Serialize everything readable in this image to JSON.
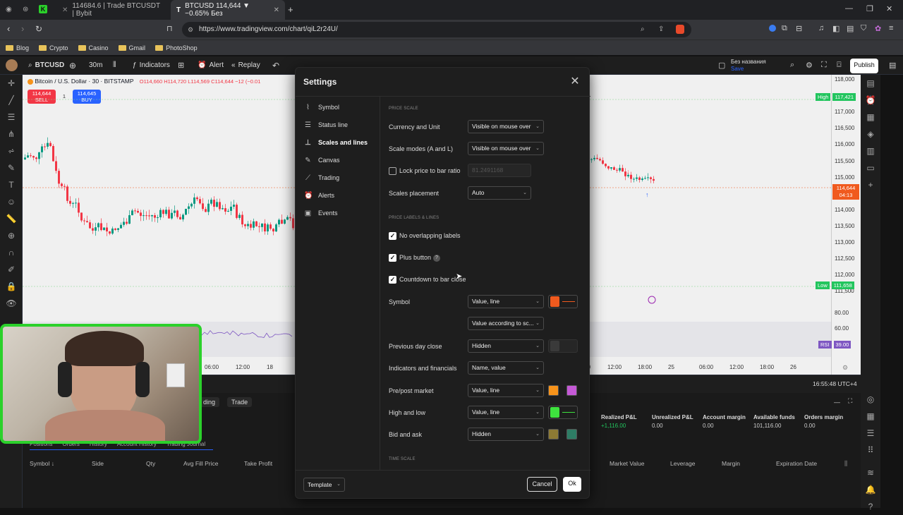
{
  "browser": {
    "tabs": [
      {
        "label": "114684.6 | Trade BTCUSDT | Bybit",
        "active": false
      },
      {
        "label": "BTCUSD 114,644 ▼ −0.65% Без",
        "active": true
      }
    ],
    "url": "https://www.tradingview.com/chart/qiL2r24U/",
    "bookmarks": [
      "Blog",
      "Crypto",
      "Casino",
      "Gmail",
      "PhotoShop"
    ]
  },
  "toolbar": {
    "symbol": "BTCUSD",
    "interval": "30m",
    "indicators": "Indicators",
    "alert": "Alert",
    "replay": "Replay",
    "layout_name": "Без названия",
    "layout_sub": "Save",
    "publish": "Publish"
  },
  "chart": {
    "title": "Bitcoin / U.S. Dollar · 30 · BITSTAMP",
    "ohlc": "O114,660 H114,720 L114,569 C114,644 −12 (−0.01",
    "sell_price": "114,644",
    "sell_label": "SELL",
    "buy_price": "114,645",
    "buy_label": "BUY",
    "qty": "1",
    "price_ticks": [
      "118,000",
      "117,500",
      "117,000",
      "116,500",
      "116,000",
      "115,500",
      "115,000",
      "114,500",
      "114,000",
      "113,500",
      "113,000",
      "112,500",
      "112,000",
      "111,500"
    ],
    "high_label": "High",
    "high_value": "117,421",
    "low_label": "Low",
    "low_value": "111,658",
    "current_price": "114,644",
    "countdown": "04:13",
    "rsi_ticks": [
      "80.00",
      "60.00"
    ],
    "rsi_label": "RSI",
    "rsi_value": "39.00",
    "time_ticks": [
      "06:00",
      "12:00",
      "18",
      "06:00",
      "12:00",
      "18:00",
      "25",
      "06:00",
      "12:00",
      "18:00",
      "26"
    ],
    "clock": "16:55:48 UTC+4",
    "accent_up": "#089981",
    "accent_down": "#f23645"
  },
  "bottom_panel": {
    "tabs": [
      "Positions",
      "Orders",
      "History",
      "Account History",
      "Trading Journal"
    ],
    "trade_tab": "Trade",
    "trading_tab": "ding",
    "stats": [
      {
        "label": "Realized P&L",
        "value": "+1,116.00"
      },
      {
        "label": "Unrealized P&L",
        "value": "0.00"
      },
      {
        "label": "Account margin",
        "value": "0.00"
      },
      {
        "label": "Available funds",
        "value": "101,116.00"
      },
      {
        "label": "Orders margin",
        "value": "0.00"
      }
    ],
    "columns_left": [
      "Symbol ↓",
      "Side",
      "Qty",
      "Avg Fill Price",
      "Take Profit"
    ],
    "columns_right": [
      "Market Value",
      "Leverage",
      "Margin",
      "Expiration Date"
    ]
  },
  "settings": {
    "title": "Settings",
    "nav": [
      {
        "label": "Symbol",
        "icon": "symbol-icon",
        "selected": false
      },
      {
        "label": "Status line",
        "icon": "status-line-icon",
        "selected": false
      },
      {
        "label": "Scales and lines",
        "icon": "scales-icon",
        "selected": true
      },
      {
        "label": "Canvas",
        "icon": "canvas-icon",
        "selected": false
      },
      {
        "label": "Trading",
        "icon": "trading-icon",
        "selected": false
      },
      {
        "label": "Alerts",
        "icon": "alerts-icon",
        "selected": false
      },
      {
        "label": "Events",
        "icon": "events-icon",
        "selected": false
      }
    ],
    "sections": {
      "price_scale": "PRICE SCALE",
      "price_labels": "PRICE LABELS & LINES",
      "time_scale": "TIME SCALE"
    },
    "currency_unit": {
      "label": "Currency and Unit",
      "value": "Visible on mouse over"
    },
    "scale_modes": {
      "label": "Scale modes (A and L)",
      "value": "Visible on mouse over"
    },
    "lock_price": {
      "label": "Lock price to bar ratio",
      "value": "81.2491168",
      "checked": false
    },
    "scales_placement": {
      "label": "Scales placement",
      "value": "Auto"
    },
    "no_overlap": {
      "label": "No overlapping labels",
      "checked": true
    },
    "plus_button": {
      "label": "Plus button",
      "checked": true
    },
    "countdown": {
      "label": "Countdown to bar close",
      "checked": true
    },
    "symbol_row": {
      "label": "Symbol",
      "value": "Value, line",
      "value2": "Value according to sc...",
      "color": "#f05a1e"
    },
    "prev_day": {
      "label": "Previous day close",
      "value": "Hidden"
    },
    "indicators": {
      "label": "Indicators and financials",
      "value": "Name, value"
    },
    "prepost": {
      "label": "Pre/post market",
      "value": "Value, line",
      "color1": "#f7931a",
      "color2": "#c559d6"
    },
    "highlow": {
      "label": "High and low",
      "value": "Value, line",
      "color": "#3ee23e"
    },
    "bidask": {
      "label": "Bid and ask",
      "value": "Hidden",
      "color1": "#8d7a34",
      "color2": "#2e7d65"
    },
    "template": "Template",
    "cancel": "Cancel",
    "ok": "Ok"
  }
}
